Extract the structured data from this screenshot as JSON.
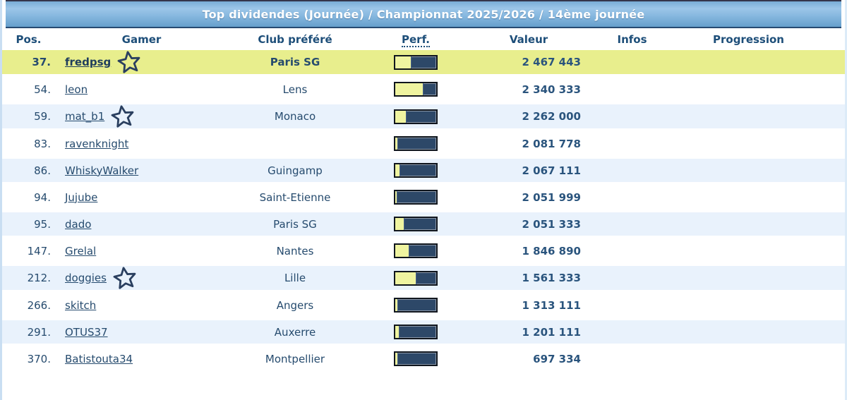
{
  "title": "Top dividendes (Journée) / Championnat 2025/2026 / 14ème journée",
  "columns": {
    "pos": "Pos.",
    "gamer": "Gamer",
    "club": "Club préféré",
    "perf": "Perf.",
    "valeur": "Valeur",
    "infos": "Infos",
    "progression": "Progression"
  },
  "colors": {
    "highlight_row": "#e8ee8d",
    "alt_row": "#e9f2fc",
    "header_blue_top": "#9cc6e8",
    "header_blue_bottom": "#669fcc",
    "text_navy": "#264b6e",
    "bar_dark": "#2d4868",
    "bar_fill_yellow": "#eff4a0"
  },
  "icons": {
    "star": "star-outline"
  },
  "rows": [
    {
      "pos": "37.",
      "gamer": "fredpsg",
      "star": true,
      "club": "Paris SG",
      "perf_pct": 40,
      "valeur": "2 467 443",
      "infos": "",
      "progression": "",
      "highlight": true
    },
    {
      "pos": "54.",
      "gamer": "leon",
      "star": false,
      "club": "Lens",
      "perf_pct": 69,
      "valeur": "2 340 333",
      "infos": "",
      "progression": "",
      "highlight": false
    },
    {
      "pos": "59.",
      "gamer": "mat_b1",
      "star": true,
      "club": "Monaco",
      "perf_pct": 28,
      "valeur": "2 262 000",
      "infos": "",
      "progression": "",
      "highlight": false
    },
    {
      "pos": "83.",
      "gamer": "ravenknight",
      "star": false,
      "club": "",
      "perf_pct": 7,
      "valeur": "2 081 778",
      "infos": "",
      "progression": "",
      "highlight": false
    },
    {
      "pos": "86.",
      "gamer": "WhiskyWalker",
      "star": false,
      "club": "Guingamp",
      "perf_pct": 12,
      "valeur": "2 067 111",
      "infos": "",
      "progression": "",
      "highlight": false
    },
    {
      "pos": "94.",
      "gamer": "Jujube",
      "star": false,
      "club": "Saint-Etienne",
      "perf_pct": 6,
      "valeur": "2 051 999",
      "infos": "",
      "progression": "",
      "highlight": false
    },
    {
      "pos": "95.",
      "gamer": "dado",
      "star": false,
      "club": "Paris SG",
      "perf_pct": 23,
      "valeur": "2 051 333",
      "infos": "",
      "progression": "",
      "highlight": false
    },
    {
      "pos": "147.",
      "gamer": "Grelal",
      "star": false,
      "club": "Nantes",
      "perf_pct": 35,
      "valeur": "1 846 890",
      "infos": "",
      "progression": "",
      "highlight": false
    },
    {
      "pos": "212.",
      "gamer": "doggies",
      "star": true,
      "club": "Lille",
      "perf_pct": 52,
      "valeur": "1 561 333",
      "infos": "",
      "progression": "",
      "highlight": false
    },
    {
      "pos": "266.",
      "gamer": "skitch",
      "star": false,
      "club": "Angers",
      "perf_pct": 7,
      "valeur": "1 313 111",
      "infos": "",
      "progression": "",
      "highlight": false
    },
    {
      "pos": "291.",
      "gamer": "OTUS37",
      "star": false,
      "club": "Auxerre",
      "perf_pct": 10,
      "valeur": "1 201 111",
      "infos": "",
      "progression": "",
      "highlight": false
    },
    {
      "pos": "370.",
      "gamer": "Batistouta34",
      "star": false,
      "club": "Montpellier",
      "perf_pct": 7,
      "valeur": "697 334",
      "infos": "",
      "progression": "",
      "highlight": false
    }
  ]
}
